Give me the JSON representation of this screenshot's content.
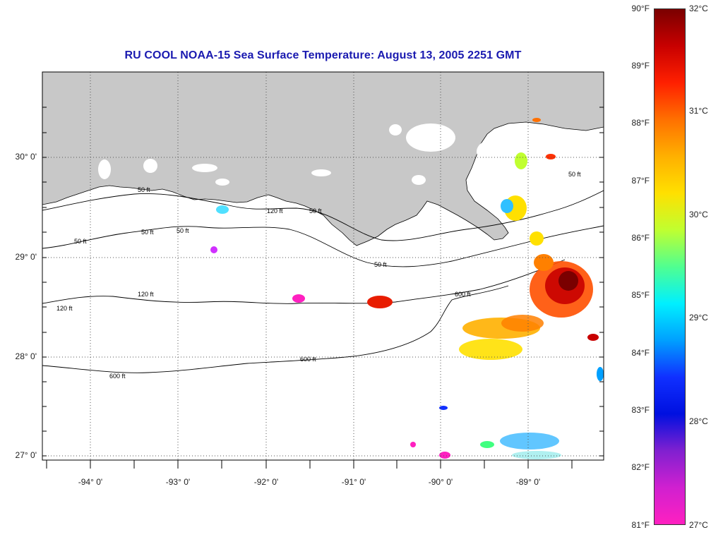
{
  "title": "RU COOL  NOAA-15  Sea Surface Temperature:  August 13, 2005 2251 GMT",
  "latitude_labels": [
    "30° 0'",
    "29° 0'",
    "28° 0'",
    "27° 0'"
  ],
  "longitude_labels": [
    "-94° 0'",
    "-93° 0'",
    "-92° 0'",
    "-91° 0'",
    "-90° 0'",
    "-89° 0'"
  ],
  "contour_labels": {
    "c50": "50 ft",
    "c120": "120 ft",
    "c600": "600 ft"
  },
  "colorbar": {
    "fahrenheit": [
      "90°F",
      "89°F",
      "88°F",
      "87°F",
      "86°F",
      "85°F",
      "84°F",
      "83°F",
      "82°F",
      "81°F"
    ],
    "celsius": [
      "32°C",
      "31°C",
      "30°C",
      "29°C",
      "28°C",
      "27°C"
    ],
    "colors": [
      "#7a0000",
      "#c80000",
      "#ff2000",
      "#ff7000",
      "#ffb000",
      "#ffe000",
      "#c0ff30",
      "#50ff90",
      "#00f0ff",
      "#00a0ff",
      "#1030ff",
      "#0010e0",
      "#8020d0",
      "#d020d0",
      "#ff20c0"
    ]
  },
  "colors": {
    "land": "#c8c8c8",
    "title": "#1a1ab0",
    "grid": "#444444"
  }
}
